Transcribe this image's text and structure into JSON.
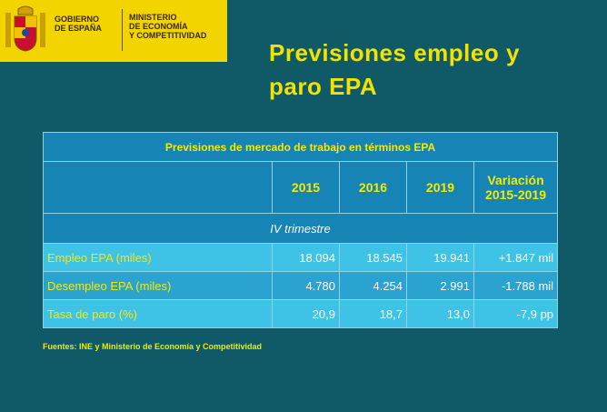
{
  "header": {
    "gov_line1": "GOBIERNO",
    "gov_line2": "DE ESPAÑA",
    "min_line1": "MINISTERIO",
    "min_line2": "DE ECONOMÍA",
    "min_line3": "Y COMPETITIVIDAD"
  },
  "title_line1": "Previsiones empleo y",
  "title_line2": "paro EPA",
  "table": {
    "caption": "Previsiones de mercado de trabajo en términos EPA",
    "columns": [
      "2015",
      "2016",
      "2019",
      "Variación 2015-2019"
    ],
    "subheader": "IV trimestre",
    "rows": [
      {
        "label": "Empleo EPA (miles)",
        "values": [
          "18.094",
          "18.545",
          "19.941",
          "+1.847 mil"
        ]
      },
      {
        "label": "Desempleo EPA (miles)",
        "values": [
          "4.780",
          "4.254",
          "2.991",
          "-1.788 mil"
        ]
      },
      {
        "label": "Tasa de paro (%)",
        "values": [
          "20,9",
          "18,7",
          "13,0",
          "-7,9 pp"
        ]
      }
    ]
  },
  "source": "Fuentes: INE y Ministerio de Economía y Competitividad",
  "colors": {
    "background": "#0f5a66",
    "title": "#f2e200",
    "header_band": "#f2d500"
  }
}
